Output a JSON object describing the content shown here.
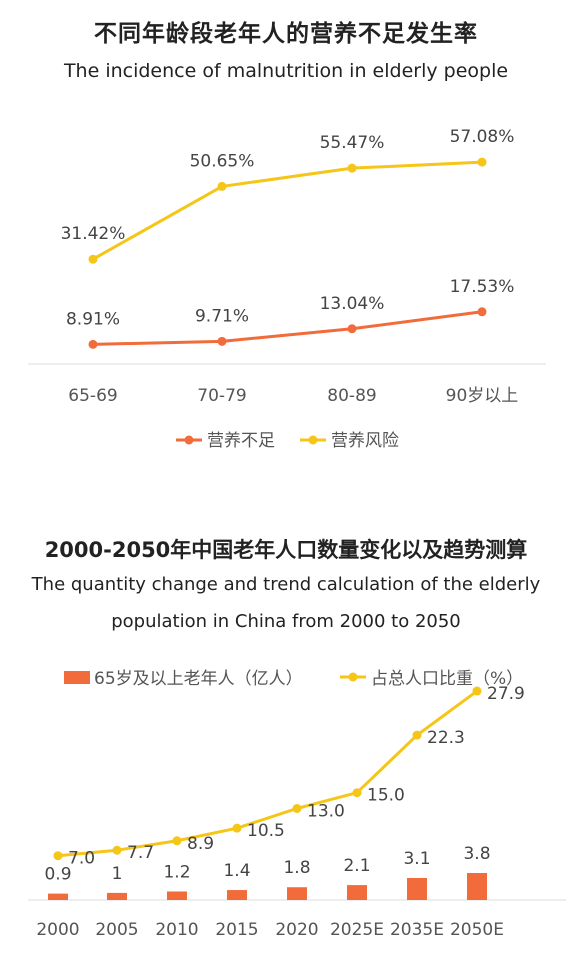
{
  "chart_data": [
    {
      "type": "line",
      "title": "不同年龄段老年人的营养不足发生率",
      "subtitle": "The incidence of malnutrition in elderly people",
      "categories": [
        "65-69",
        "70-79",
        "80-89",
        "90岁以上"
      ],
      "series": [
        {
          "name": "营养不足",
          "color": "#f26b3a",
          "values": [
            8.91,
            9.71,
            13.04,
            17.53
          ],
          "labels": [
            "8.91%",
            "9.71%",
            "13.04%",
            "17.53%"
          ]
        },
        {
          "name": "营养风险",
          "color": "#f5c518",
          "values": [
            31.42,
            50.65,
            55.47,
            57.08
          ],
          "labels": [
            "31.42%",
            "50.65%",
            "55.47%",
            "57.08%"
          ]
        }
      ],
      "legend": "bottom",
      "grid": false
    },
    {
      "type": "bar",
      "title": "2000-2050年中国老年人口数量变化以及趋势测算",
      "subtitle_line1": "The quantity change and trend calculation of the elderly",
      "subtitle_line2": "population in China from 2000 to 2050",
      "categories": [
        "2000",
        "2005",
        "2010",
        "2015",
        "2020",
        "2025E",
        "2035E",
        "2050E"
      ],
      "series": [
        {
          "name": "65岁及以上老年人（亿人）",
          "type": "bar",
          "color": "#f26b3a",
          "values": [
            0.9,
            1,
            1.2,
            1.4,
            1.8,
            2.1,
            3.1,
            3.8
          ],
          "labels": [
            "0.9",
            "1",
            "1.2",
            "1.4",
            "1.8",
            "2.1",
            "3.1",
            "3.8"
          ]
        },
        {
          "name": "占总人口比重（%）",
          "type": "line",
          "color": "#f5c518",
          "values": [
            7.0,
            7.7,
            8.9,
            10.5,
            13.0,
            15.0,
            22.3,
            27.9
          ],
          "labels": [
            "7.0",
            "7.7",
            "8.9",
            "10.5",
            "13.0",
            "15.0",
            "22.3",
            "27.9"
          ]
        }
      ],
      "legend": "top",
      "grid": false
    }
  ]
}
